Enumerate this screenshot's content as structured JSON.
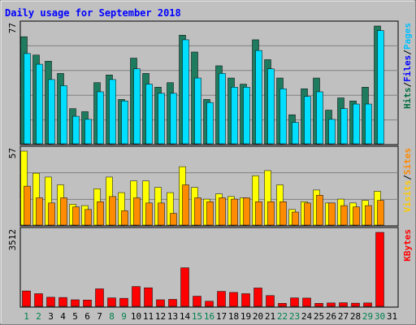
{
  "chart_data": {
    "type": "bar",
    "title": "Daily usage for September 2018",
    "categories": [
      "1",
      "2",
      "3",
      "4",
      "5",
      "6",
      "7",
      "8",
      "9",
      "10",
      "11",
      "12",
      "13",
      "14",
      "15",
      "16",
      "17",
      "18",
      "19",
      "20",
      "21",
      "22",
      "23",
      "24",
      "25",
      "26",
      "27",
      "28",
      "29",
      "30",
      "31"
    ],
    "weekend_days": [
      "1",
      "2",
      "8",
      "9",
      "15",
      "16",
      "22",
      "23",
      "29",
      "30"
    ],
    "panels": [
      {
        "name": "hits-files-pages",
        "max_label": "77",
        "legend": [
          {
            "text": "Hits",
            "color": "#006c3e"
          },
          {
            "text": "/",
            "color": "#000000"
          },
          {
            "text": "Files",
            "color": "#0000ff"
          },
          {
            "text": "/",
            "color": "#000000"
          },
          {
            "text": "Pages",
            "color": "#00c0ff"
          }
        ],
        "scale_max": 77,
        "series": [
          {
            "name": "Hits",
            "color": "#1e7b5e",
            "values": [
              70,
              58,
              54,
              46,
              23,
              21,
              40,
              45,
              29,
              56,
              46,
              37,
              40,
              71,
              60,
              29,
              51,
              43,
              39,
              68,
              55,
              43,
              19,
              36,
              43,
              22,
              30,
              28,
              37,
              77,
              0
            ]
          },
          {
            "name": "Pages",
            "color": "#00dfff",
            "values": [
              59,
              52,
              42,
              38,
              18,
              16,
              34,
              42,
              28,
              49,
              39,
              33,
              33,
              68,
              43,
              27,
              46,
              37,
              37,
              61,
              49,
              36,
              14,
              31,
              34,
              16,
              23,
              26,
              26,
              74,
              0
            ]
          }
        ]
      },
      {
        "name": "visits-sites",
        "max_label": "57",
        "legend": [
          {
            "text": "Visits",
            "color": "#ffcc00"
          },
          {
            "text": "/",
            "color": "#000000"
          },
          {
            "text": "Sites",
            "color": "#ff8800"
          }
        ],
        "scale_max": 57,
        "series": [
          {
            "name": "Visits",
            "color": "#ffff00",
            "values": [
              57,
              40,
              37,
              31,
              16,
              15,
              28,
              37,
              25,
              34,
              34,
              29,
              25,
              45,
              29,
              20,
              24,
              22,
              21,
              38,
              42,
              31,
              12,
              18,
              27,
              17,
              20,
              17,
              19,
              26,
              0
            ]
          },
          {
            "name": "Sites",
            "color": "#ff8c00",
            "values": [
              30,
              21,
              17,
              21,
              14,
              12,
              18,
              22,
              11,
              21,
              17,
              17,
              9,
              31,
              21,
              18,
              21,
              20,
              21,
              18,
              18,
              18,
              10,
              17,
              23,
              17,
              15,
              14,
              15,
              19,
              0
            ]
          }
        ]
      },
      {
        "name": "kbytes",
        "max_label": "3512",
        "legend": [
          {
            "text": "KBytes",
            "color": "#ff0000"
          }
        ],
        "scale_max": 3512,
        "series": [
          {
            "name": "KBytes",
            "color": "#ff0000",
            "values": [
              730,
              600,
              430,
              420,
              310,
              300,
              830,
              400,
              380,
              940,
              880,
              310,
              330,
              1830,
              480,
              240,
              710,
              660,
              600,
              870,
              510,
              140,
              400,
              390,
              140,
              160,
              170,
              150,
              160,
              3512,
              0
            ]
          }
        ]
      }
    ]
  }
}
